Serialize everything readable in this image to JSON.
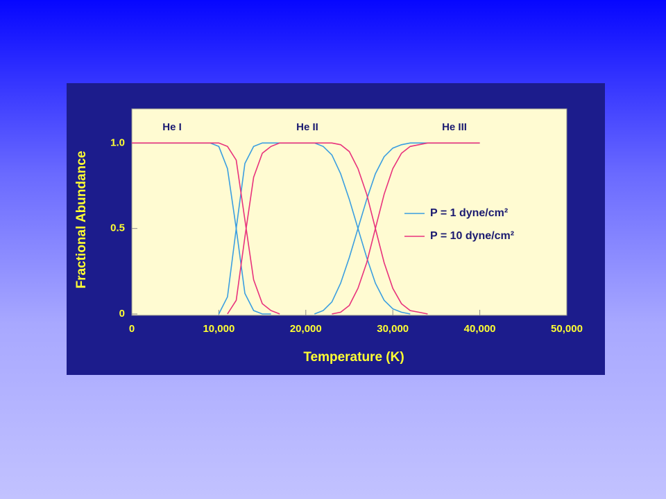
{
  "chart_data": {
    "type": "line",
    "xlabel": "Temperature (K)",
    "ylabel": "Fractional Abundance",
    "annotations": [
      "He I",
      "He II",
      "He III"
    ],
    "x": [
      0,
      1000,
      2000,
      3000,
      4000,
      5000,
      6000,
      7000,
      8000,
      9000,
      10000,
      11000,
      12000,
      13000,
      14000,
      15000,
      16000,
      17000,
      18000,
      19000,
      20000,
      21000,
      22000,
      23000,
      24000,
      25000,
      26000,
      27000,
      28000,
      29000,
      30000,
      31000,
      32000,
      33000,
      34000,
      35000,
      36000,
      37000,
      38000,
      39000,
      40000
    ],
    "series": [
      {
        "name": "P = 1 dyne/cm²",
        "color": "#3a9ee0",
        "values": [
          [
            1,
            1,
            1,
            1,
            1,
            1,
            1,
            1,
            1,
            1,
            0.98,
            0.85,
            0.5,
            0.12,
            0.02,
            0,
            0,
            null,
            null,
            null,
            null,
            null,
            null,
            null,
            null,
            null,
            null,
            null,
            null,
            null,
            null,
            null,
            null,
            null,
            null,
            null,
            null,
            null,
            null,
            null,
            null
          ],
          [
            null,
            null,
            null,
            null,
            null,
            null,
            null,
            null,
            null,
            null,
            0,
            0.1,
            0.5,
            0.88,
            0.98,
            1,
            1,
            1,
            1,
            1,
            1,
            1,
            0.98,
            0.93,
            0.82,
            0.67,
            0.5,
            0.33,
            0.18,
            0.08,
            0.03,
            0.01,
            0,
            null,
            null,
            null,
            null,
            null,
            null,
            null,
            null
          ],
          [
            null,
            null,
            null,
            null,
            null,
            null,
            null,
            null,
            null,
            null,
            null,
            null,
            null,
            null,
            null,
            null,
            null,
            null,
            null,
            null,
            null,
            0,
            0.02,
            0.07,
            0.18,
            0.33,
            0.5,
            0.67,
            0.82,
            0.92,
            0.97,
            0.99,
            1,
            1,
            1,
            1,
            1,
            1,
            1,
            1,
            1
          ]
        ]
      },
      {
        "name": "P = 10 dyne/cm²",
        "color": "#e8327c",
        "values": [
          [
            1,
            1,
            1,
            1,
            1,
            1,
            1,
            1,
            1,
            1,
            1,
            0.98,
            0.9,
            0.55,
            0.2,
            0.06,
            0.02,
            0,
            null,
            null,
            null,
            null,
            null,
            null,
            null,
            null,
            null,
            null,
            null,
            null,
            null,
            null,
            null,
            null,
            null,
            null,
            null,
            null,
            null,
            null,
            null
          ],
          [
            null,
            null,
            null,
            null,
            null,
            null,
            null,
            null,
            null,
            null,
            null,
            0,
            0.08,
            0.45,
            0.8,
            0.94,
            0.98,
            1,
            1,
            1,
            1,
            1,
            1,
            1,
            0.99,
            0.95,
            0.85,
            0.7,
            0.5,
            0.3,
            0.15,
            0.06,
            0.02,
            0.01,
            0,
            null,
            null,
            null,
            null,
            null,
            null
          ],
          [
            null,
            null,
            null,
            null,
            null,
            null,
            null,
            null,
            null,
            null,
            null,
            null,
            null,
            null,
            null,
            null,
            null,
            null,
            null,
            null,
            null,
            null,
            null,
            0,
            0.01,
            0.05,
            0.15,
            0.3,
            0.5,
            0.7,
            0.85,
            0.94,
            0.98,
            0.99,
            1,
            1,
            1,
            1,
            1,
            1,
            1
          ]
        ]
      }
    ],
    "xlim": [
      0,
      50000
    ],
    "xticks": [
      0,
      {
        "value": 10000,
        "label": "10,000"
      },
      {
        "value": 20000,
        "label": "20,000"
      },
      {
        "value": 30000,
        "label": "30,000"
      },
      {
        "value": 40000,
        "label": "40,000"
      },
      {
        "value": 50000,
        "label": "50,000"
      }
    ],
    "ylim": [
      0,
      1.2
    ],
    "yticks": [
      0,
      0.5,
      {
        "value": 1,
        "label": "1.0"
      }
    ]
  }
}
